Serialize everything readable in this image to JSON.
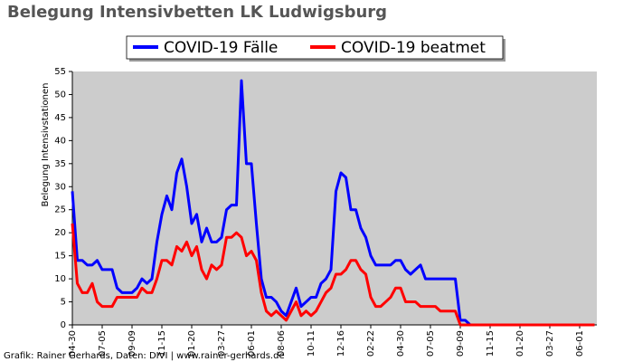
{
  "chart_data": {
    "type": "line",
    "title": "Belegung Intensivbetten LK Ludwigsburg",
    "y_label": "Belegung Intensivstationen",
    "footer": "Grafik: Rainer Gerhards, Daten: DIVI | www.rainer-gerhards.de",
    "categories": [
      "04-30",
      null,
      null,
      null,
      null,
      null,
      "07-05",
      null,
      null,
      null,
      null,
      null,
      "09-09",
      null,
      null,
      null,
      null,
      null,
      "11-15",
      null,
      null,
      null,
      null,
      null,
      "01-20",
      null,
      null,
      null,
      null,
      null,
      "03-27",
      null,
      null,
      null,
      null,
      null,
      "06-01",
      null,
      null,
      null,
      null,
      null,
      "08-06",
      null,
      null,
      null,
      null,
      null,
      "10-11",
      null,
      null,
      null,
      null,
      null,
      "12-16",
      null,
      null,
      null,
      null,
      null,
      "02-22",
      null,
      null,
      null,
      null,
      null,
      "04-30",
      null,
      null,
      null,
      null,
      null,
      "07-05",
      null,
      null,
      null,
      null,
      null,
      "09-09",
      null,
      null,
      null,
      null,
      null,
      "11-15",
      null,
      null,
      null,
      null,
      null,
      "01-20",
      null,
      null,
      null,
      null,
      null,
      "03-27",
      null,
      null,
      null,
      null,
      null,
      "06-01",
      null,
      null,
      null
    ],
    "series": [
      {
        "name": "COVID-19 Fälle",
        "color": "#0000ff",
        "values": [
          29,
          14,
          14,
          13,
          13,
          14,
          12,
          12,
          12,
          8,
          7,
          7,
          7,
          8,
          10,
          9,
          10,
          18,
          24,
          28,
          25,
          33,
          36,
          30,
          22,
          24,
          18,
          21,
          18,
          18,
          19,
          25,
          26,
          26,
          53,
          35,
          35,
          22,
          10,
          6,
          6,
          5,
          3,
          2,
          5,
          8,
          4,
          5,
          6,
          6,
          9,
          10,
          12,
          29,
          33,
          32,
          25,
          25,
          21,
          19,
          15,
          13,
          13,
          13,
          13,
          14,
          14,
          12,
          11,
          12,
          13,
          10,
          10,
          10,
          10,
          10,
          10,
          10,
          1,
          1,
          0,
          null,
          null,
          null,
          null,
          null,
          null,
          null,
          null,
          null,
          null,
          null,
          null,
          null,
          null,
          null,
          null,
          null,
          null,
          null,
          null,
          null,
          null,
          null,
          null,
          null
        ]
      },
      {
        "name": "COVID-19 beatmet",
        "color": "#ff0000",
        "values": [
          22,
          9,
          7,
          7,
          9,
          5,
          4,
          4,
          4,
          6,
          6,
          6,
          6,
          6,
          8,
          7,
          7,
          10,
          14,
          14,
          13,
          17,
          16,
          18,
          15,
          17,
          12,
          10,
          13,
          12,
          13,
          19,
          19,
          20,
          19,
          15,
          16,
          14,
          7,
          3,
          2,
          3,
          2,
          1,
          3,
          5,
          2,
          3,
          2,
          3,
          5,
          7,
          8,
          11,
          11,
          12,
          14,
          14,
          12,
          11,
          6,
          4,
          4,
          5,
          6,
          8,
          8,
          5,
          5,
          5,
          4,
          4,
          4,
          4,
          3,
          3,
          3,
          3,
          0,
          0,
          0,
          0,
          0,
          0,
          0,
          0,
          0,
          0,
          0,
          0,
          0,
          0,
          0,
          0,
          0,
          0,
          0,
          0,
          0,
          0,
          0,
          0,
          0,
          0,
          0,
          0
        ]
      }
    ],
    "ylim": [
      0,
      55
    ],
    "yticks": [
      0,
      5,
      10,
      15,
      20,
      25,
      30,
      35,
      40,
      45,
      50,
      55
    ],
    "legend": "top",
    "background": "#cccccc"
  }
}
